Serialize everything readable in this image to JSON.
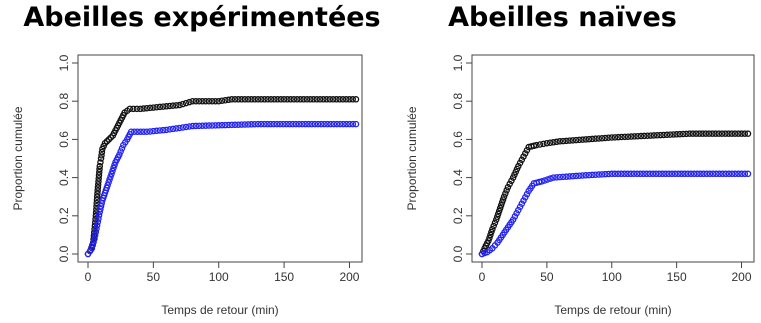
{
  "chart_data": [
    {
      "type": "scatter",
      "title": "Abeilles expérimentées",
      "xlabel": "Temps de retour (min)",
      "ylabel": "Proportion cumulée",
      "xlim": [
        0,
        205
      ],
      "ylim": [
        0,
        1.0
      ],
      "xticks": [
        0,
        50,
        100,
        150,
        200
      ],
      "yticks": [
        0.0,
        0.2,
        0.4,
        0.6,
        0.8,
        1.0
      ],
      "grid": false,
      "series": [
        {
          "color": "#111111",
          "points": [
            [
              0,
              0.0
            ],
            [
              2,
              0.02
            ],
            [
              4,
              0.06
            ],
            [
              5,
              0.13
            ],
            [
              6,
              0.2
            ],
            [
              7,
              0.3
            ],
            [
              8,
              0.38
            ],
            [
              9,
              0.46
            ],
            [
              10,
              0.5
            ],
            [
              11,
              0.55
            ],
            [
              13,
              0.58
            ],
            [
              16,
              0.6
            ],
            [
              19,
              0.62
            ],
            [
              22,
              0.66
            ],
            [
              25,
              0.7
            ],
            [
              28,
              0.74
            ],
            [
              32,
              0.76
            ],
            [
              40,
              0.76
            ],
            [
              55,
              0.77
            ],
            [
              70,
              0.78
            ],
            [
              80,
              0.8
            ],
            [
              100,
              0.8
            ],
            [
              110,
              0.81
            ],
            [
              150,
              0.81
            ],
            [
              205,
              0.81
            ]
          ]
        },
        {
          "color": "#2222ee",
          "points": [
            [
              0,
              0.0
            ],
            [
              3,
              0.03
            ],
            [
              5,
              0.08
            ],
            [
              7,
              0.15
            ],
            [
              9,
              0.22
            ],
            [
              11,
              0.28
            ],
            [
              13,
              0.32
            ],
            [
              15,
              0.36
            ],
            [
              18,
              0.42
            ],
            [
              21,
              0.48
            ],
            [
              24,
              0.52
            ],
            [
              27,
              0.57
            ],
            [
              30,
              0.6
            ],
            [
              33,
              0.64
            ],
            [
              45,
              0.64
            ],
            [
              60,
              0.65
            ],
            [
              80,
              0.67
            ],
            [
              130,
              0.68
            ],
            [
              205,
              0.68
            ]
          ]
        }
      ]
    },
    {
      "type": "scatter",
      "title": "Abeilles naïves",
      "xlabel": "Temps de retour (min)",
      "ylabel": "Proportion cumulée",
      "xlim": [
        0,
        205
      ],
      "ylim": [
        0,
        1.0
      ],
      "xticks": [
        0,
        50,
        100,
        150,
        200
      ],
      "yticks": [
        0.0,
        0.2,
        0.4,
        0.6,
        0.8,
        1.0
      ],
      "grid": false,
      "series": [
        {
          "color": "#111111",
          "points": [
            [
              0,
              0.0
            ],
            [
              2,
              0.03
            ],
            [
              5,
              0.07
            ],
            [
              8,
              0.13
            ],
            [
              11,
              0.18
            ],
            [
              14,
              0.24
            ],
            [
              17,
              0.3
            ],
            [
              20,
              0.35
            ],
            [
              24,
              0.4
            ],
            [
              28,
              0.46
            ],
            [
              32,
              0.51
            ],
            [
              36,
              0.56
            ],
            [
              42,
              0.57
            ],
            [
              50,
              0.58
            ],
            [
              60,
              0.59
            ],
            [
              80,
              0.6
            ],
            [
              100,
              0.61
            ],
            [
              130,
              0.62
            ],
            [
              160,
              0.63
            ],
            [
              205,
              0.63
            ]
          ]
        },
        {
          "color": "#2222ee",
          "points": [
            [
              0,
              0.0
            ],
            [
              4,
              0.01
            ],
            [
              8,
              0.03
            ],
            [
              12,
              0.06
            ],
            [
              16,
              0.1
            ],
            [
              20,
              0.14
            ],
            [
              24,
              0.18
            ],
            [
              28,
              0.23
            ],
            [
              32,
              0.28
            ],
            [
              36,
              0.33
            ],
            [
              40,
              0.37
            ],
            [
              46,
              0.38
            ],
            [
              55,
              0.4
            ],
            [
              75,
              0.41
            ],
            [
              100,
              0.42
            ],
            [
              205,
              0.42
            ]
          ]
        }
      ]
    }
  ]
}
